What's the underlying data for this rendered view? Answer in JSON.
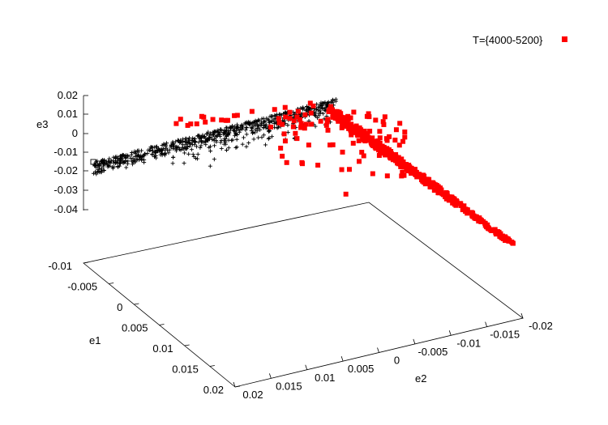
{
  "chart_data": {
    "type": "scatter",
    "title": "",
    "legend": {
      "placement": "top-right",
      "entries": [
        {
          "label": "T={4000-5200}",
          "color": "#ff0000",
          "marker": "square"
        }
      ]
    },
    "axes": {
      "e1": {
        "label": "e1",
        "ticks": [
          "-0.01",
          "-0.005",
          "0",
          "0.005",
          "0.01",
          "0.015",
          "0.02"
        ],
        "range": [
          -0.01,
          0.02
        ]
      },
      "e2": {
        "label": "e2",
        "ticks": [
          "0.02",
          "0.015",
          "0.01",
          "0.005",
          "0",
          "-0.005",
          "-0.01",
          "-0.015",
          "-0.02"
        ],
        "range": [
          0.02,
          -0.02
        ]
      },
      "e3": {
        "label": "e3",
        "ticks": [
          "0.02",
          "0.01",
          "0",
          "-0.01",
          "-0.02",
          "-0.03",
          "-0.04"
        ],
        "range": [
          -0.04,
          0.02
        ]
      }
    },
    "grid": false,
    "series": [
      {
        "name": "",
        "color": "#000000",
        "marker": "plus",
        "points_e2_e3": [
          [
            0.019,
            -0.013
          ],
          [
            0.0175,
            -0.01
          ],
          [
            0.016,
            -0.008
          ],
          [
            0.0145,
            -0.006
          ],
          [
            0.013,
            -0.004
          ],
          [
            0.0115,
            -0.002
          ],
          [
            0.01,
            0.0
          ],
          [
            0.0085,
            0.002
          ],
          [
            0.007,
            0.004
          ],
          [
            0.0055,
            0.006
          ],
          [
            0.004,
            0.008
          ],
          [
            0.0025,
            0.01
          ],
          [
            0.001,
            0.012
          ],
          [
            0.015,
            -0.012
          ],
          [
            0.012,
            -0.011
          ],
          [
            0.009,
            -0.009
          ],
          [
            0.006,
            -0.005
          ],
          [
            0.003,
            -0.003
          ],
          [
            0.0,
            -0.001
          ]
        ]
      },
      {
        "name": "T={4000-5200}",
        "color": "#ff0000",
        "marker": "square",
        "points_e2_e3": [
          [
            0.008,
            0.005
          ],
          [
            0.006,
            0.007
          ],
          [
            0.004,
            0.009
          ],
          [
            0.002,
            0.011
          ],
          [
            0.0,
            0.013
          ],
          [
            -0.002,
            0.012
          ],
          [
            -0.004,
            0.009
          ],
          [
            -0.006,
            0.005
          ],
          [
            -0.008,
            0.001
          ],
          [
            -0.01,
            -0.003
          ],
          [
            -0.012,
            -0.008
          ],
          [
            -0.014,
            -0.014
          ],
          [
            -0.016,
            -0.02
          ],
          [
            -0.018,
            -0.027
          ],
          [
            -0.02,
            -0.033
          ],
          [
            0.001,
            -0.006
          ],
          [
            0.0,
            -0.01
          ],
          [
            -0.001,
            -0.014
          ],
          [
            -0.003,
            -0.008
          ],
          [
            -0.005,
            -0.012
          ],
          [
            0.002,
            -0.002
          ],
          [
            -0.002,
            -0.005
          ],
          [
            -0.006,
            -0.002
          ],
          [
            -0.008,
            -0.006
          ]
        ]
      }
    ]
  }
}
